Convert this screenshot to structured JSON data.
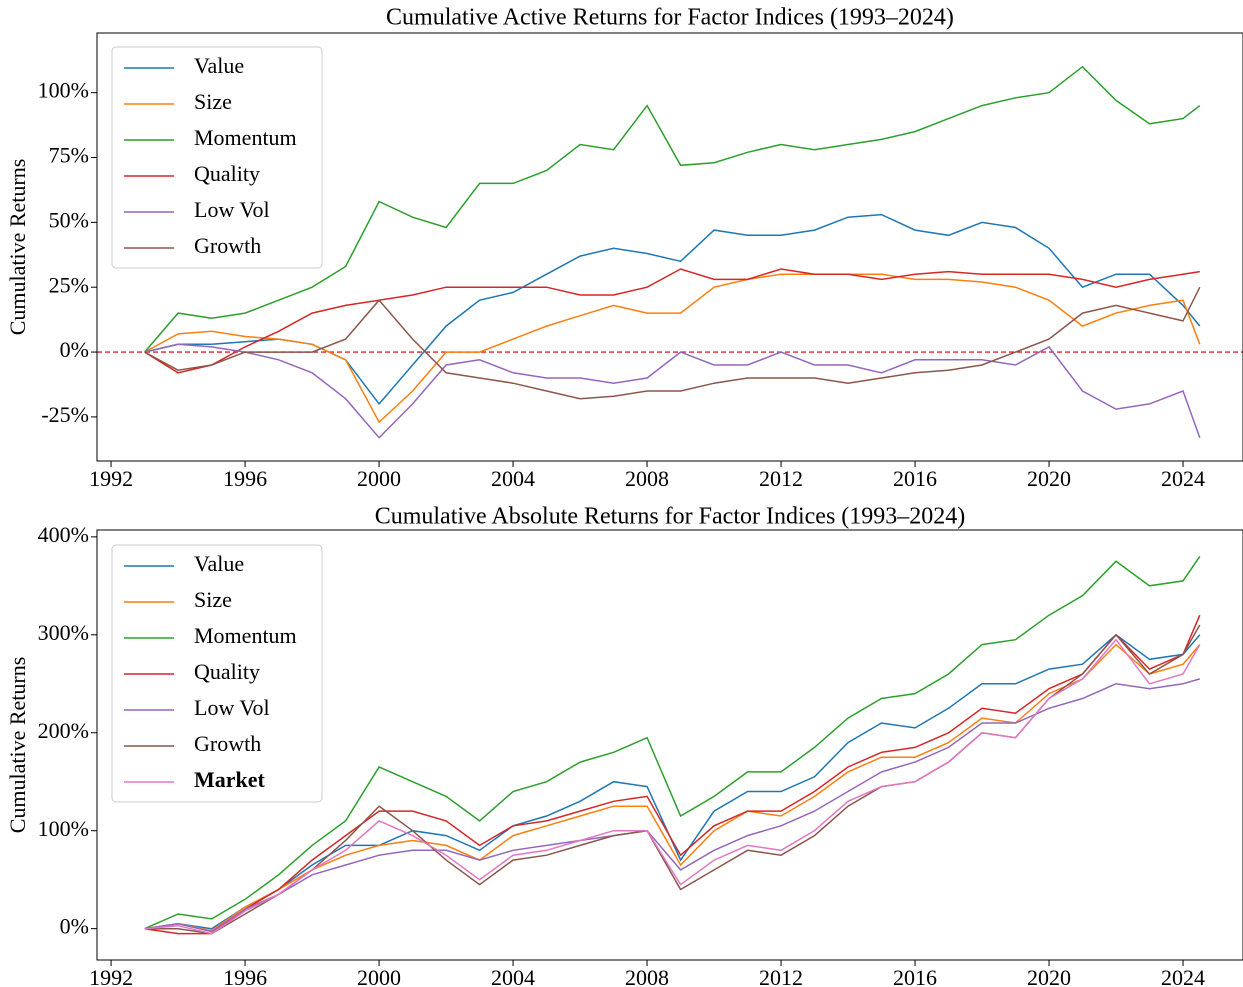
{
  "chart_data": [
    {
      "type": "line",
      "title": "Cumulative Active Returns for Factor Indices (1993–2024)",
      "y_label": "Cumulative Returns",
      "x": [
        1993,
        1994,
        1995,
        1996,
        1997,
        1998,
        1999,
        2000,
        2001,
        2002,
        2003,
        2004,
        2005,
        2006,
        2007,
        2008,
        2009,
        2010,
        2011,
        2012,
        2013,
        2014,
        2015,
        2016,
        2017,
        2018,
        2019,
        2020,
        2021,
        2022,
        2023,
        2024,
        2024.5
      ],
      "xlim": [
        1991.58,
        2025.79
      ],
      "xticks": [
        1992,
        1996,
        2000,
        2004,
        2008,
        2012,
        2016,
        2020,
        2024
      ],
      "ylim": [
        -42,
        123
      ],
      "yticks": [
        {
          "value": -25,
          "label": "-25%"
        },
        {
          "value": 0,
          "label": "0%"
        },
        {
          "value": 25,
          "label": "25%"
        },
        {
          "value": 50,
          "label": "50%"
        },
        {
          "value": 75,
          "label": "75%"
        },
        {
          "value": 100,
          "label": "100%"
        }
      ],
      "reference_line": {
        "y": 0,
        "color": "#d62728",
        "style": "dashed"
      },
      "legend": "upper left",
      "series": [
        {
          "name": "Value",
          "color": "#1f77b4",
          "values": [
            0,
            3,
            3,
            4,
            5,
            3,
            -3,
            -20,
            -5,
            10,
            20,
            23,
            30,
            37,
            40,
            38,
            35,
            47,
            45,
            45,
            47,
            52,
            53,
            47,
            45,
            50,
            48,
            40,
            25,
            30,
            30,
            18,
            10
          ]
        },
        {
          "name": "Size",
          "color": "#ff7f0e",
          "values": [
            0,
            7,
            8,
            6,
            5,
            3,
            -3,
            -27,
            -15,
            0,
            0,
            5,
            10,
            14,
            18,
            15,
            15,
            25,
            28,
            30,
            30,
            30,
            30,
            28,
            28,
            27,
            25,
            20,
            10,
            15,
            18,
            20,
            3
          ]
        },
        {
          "name": "Momentum",
          "color": "#2ca02c",
          "values": [
            0,
            15,
            13,
            15,
            20,
            25,
            33,
            58,
            52,
            48,
            65,
            65,
            70,
            80,
            78,
            95,
            72,
            73,
            77,
            80,
            78,
            80,
            82,
            85,
            90,
            95,
            98,
            100,
            110,
            97,
            88,
            90,
            95
          ]
        },
        {
          "name": "Quality",
          "color": "#d62728",
          "values": [
            0,
            -8,
            -5,
            2,
            8,
            15,
            18,
            20,
            22,
            25,
            25,
            25,
            25,
            22,
            22,
            25,
            32,
            28,
            28,
            32,
            30,
            30,
            28,
            30,
            31,
            30,
            30,
            30,
            28,
            25,
            28,
            30,
            31
          ]
        },
        {
          "name": "Low Vol",
          "color": "#9467bd",
          "values": [
            0,
            3,
            2,
            0,
            -3,
            -8,
            -18,
            -33,
            -20,
            -5,
            -3,
            -8,
            -10,
            -10,
            -12,
            -10,
            0,
            -5,
            -5,
            0,
            -5,
            -5,
            -8,
            -3,
            -3,
            -3,
            -5,
            2,
            -15,
            -22,
            -20,
            -15,
            -33
          ]
        },
        {
          "name": "Growth",
          "color": "#8c564b",
          "values": [
            0,
            -7,
            -5,
            0,
            0,
            0,
            5,
            20,
            5,
            -8,
            -10,
            -12,
            -15,
            -18,
            -17,
            -15,
            -15,
            -12,
            -10,
            -10,
            -10,
            -12,
            -10,
            -8,
            -7,
            -5,
            0,
            5,
            15,
            18,
            15,
            12,
            25
          ]
        }
      ]
    },
    {
      "type": "line",
      "title": "Cumulative Absolute Returns for Factor Indices (1993–2024)",
      "y_label": "Cumulative Returns",
      "x": [
        1993,
        1994,
        1995,
        1996,
        1997,
        1998,
        1999,
        2000,
        2001,
        2002,
        2003,
        2004,
        2005,
        2006,
        2007,
        2008,
        2009,
        2010,
        2011,
        2012,
        2013,
        2014,
        2015,
        2016,
        2017,
        2018,
        2019,
        2020,
        2021,
        2022,
        2023,
        2024,
        2024.5
      ],
      "xlim": [
        1991.58,
        2025.79
      ],
      "xticks": [
        1992,
        1996,
        2000,
        2004,
        2008,
        2012,
        2016,
        2020,
        2024
      ],
      "ylim": [
        -32,
        407
      ],
      "yticks": [
        {
          "value": 0,
          "label": "0%"
        },
        {
          "value": 100,
          "label": "100%"
        },
        {
          "value": 200,
          "label": "200%"
        },
        {
          "value": 300,
          "label": "300%"
        },
        {
          "value": 400,
          "label": "400%"
        }
      ],
      "legend": "upper left",
      "series": [
        {
          "name": "Value",
          "color": "#1f77b4",
          "values": [
            0,
            5,
            0,
            22,
            40,
            65,
            85,
            85,
            100,
            95,
            80,
            105,
            115,
            130,
            150,
            145,
            70,
            120,
            140,
            140,
            155,
            190,
            210,
            205,
            225,
            250,
            250,
            265,
            270,
            300,
            275,
            280,
            300
          ]
        },
        {
          "name": "Size",
          "color": "#ff7f0e",
          "values": [
            0,
            5,
            -2,
            22,
            40,
            60,
            75,
            85,
            90,
            85,
            70,
            95,
            105,
            115,
            125,
            125,
            65,
            100,
            120,
            115,
            135,
            160,
            175,
            175,
            190,
            215,
            210,
            240,
            255,
            290,
            260,
            270,
            290
          ]
        },
        {
          "name": "Momentum",
          "color": "#2ca02c",
          "values": [
            0,
            15,
            10,
            30,
            55,
            85,
            110,
            165,
            150,
            135,
            110,
            140,
            150,
            170,
            180,
            195,
            115,
            135,
            160,
            160,
            185,
            215,
            235,
            240,
            260,
            290,
            295,
            320,
            340,
            375,
            350,
            355,
            380
          ]
        },
        {
          "name": "Quality",
          "color": "#d62728",
          "values": [
            0,
            -5,
            -5,
            20,
            40,
            70,
            95,
            120,
            120,
            110,
            85,
            105,
            110,
            120,
            130,
            135,
            75,
            105,
            120,
            120,
            140,
            165,
            180,
            185,
            200,
            225,
            220,
            245,
            260,
            300,
            265,
            280,
            320
          ]
        },
        {
          "name": "Low Vol",
          "color": "#9467bd",
          "values": [
            0,
            5,
            -3,
            20,
            35,
            55,
            65,
            75,
            80,
            80,
            70,
            80,
            85,
            90,
            95,
            100,
            60,
            80,
            95,
            105,
            120,
            140,
            160,
            170,
            185,
            210,
            210,
            225,
            235,
            250,
            245,
            250,
            255
          ]
        },
        {
          "name": "Growth",
          "color": "#8c564b",
          "values": [
            0,
            0,
            -5,
            15,
            35,
            60,
            90,
            125,
            100,
            70,
            45,
            70,
            75,
            85,
            95,
            100,
            40,
            60,
            80,
            75,
            95,
            125,
            145,
            150,
            170,
            200,
            195,
            235,
            260,
            300,
            260,
            280,
            310
          ]
        },
        {
          "name": "Market",
          "color": "#e377c2",
          "bold": true,
          "values": [
            0,
            3,
            -5,
            18,
            35,
            60,
            80,
            110,
            95,
            75,
            50,
            75,
            80,
            90,
            100,
            100,
            45,
            70,
            85,
            80,
            100,
            130,
            145,
            150,
            170,
            200,
            195,
            235,
            255,
            295,
            250,
            260,
            290
          ]
        }
      ]
    }
  ]
}
